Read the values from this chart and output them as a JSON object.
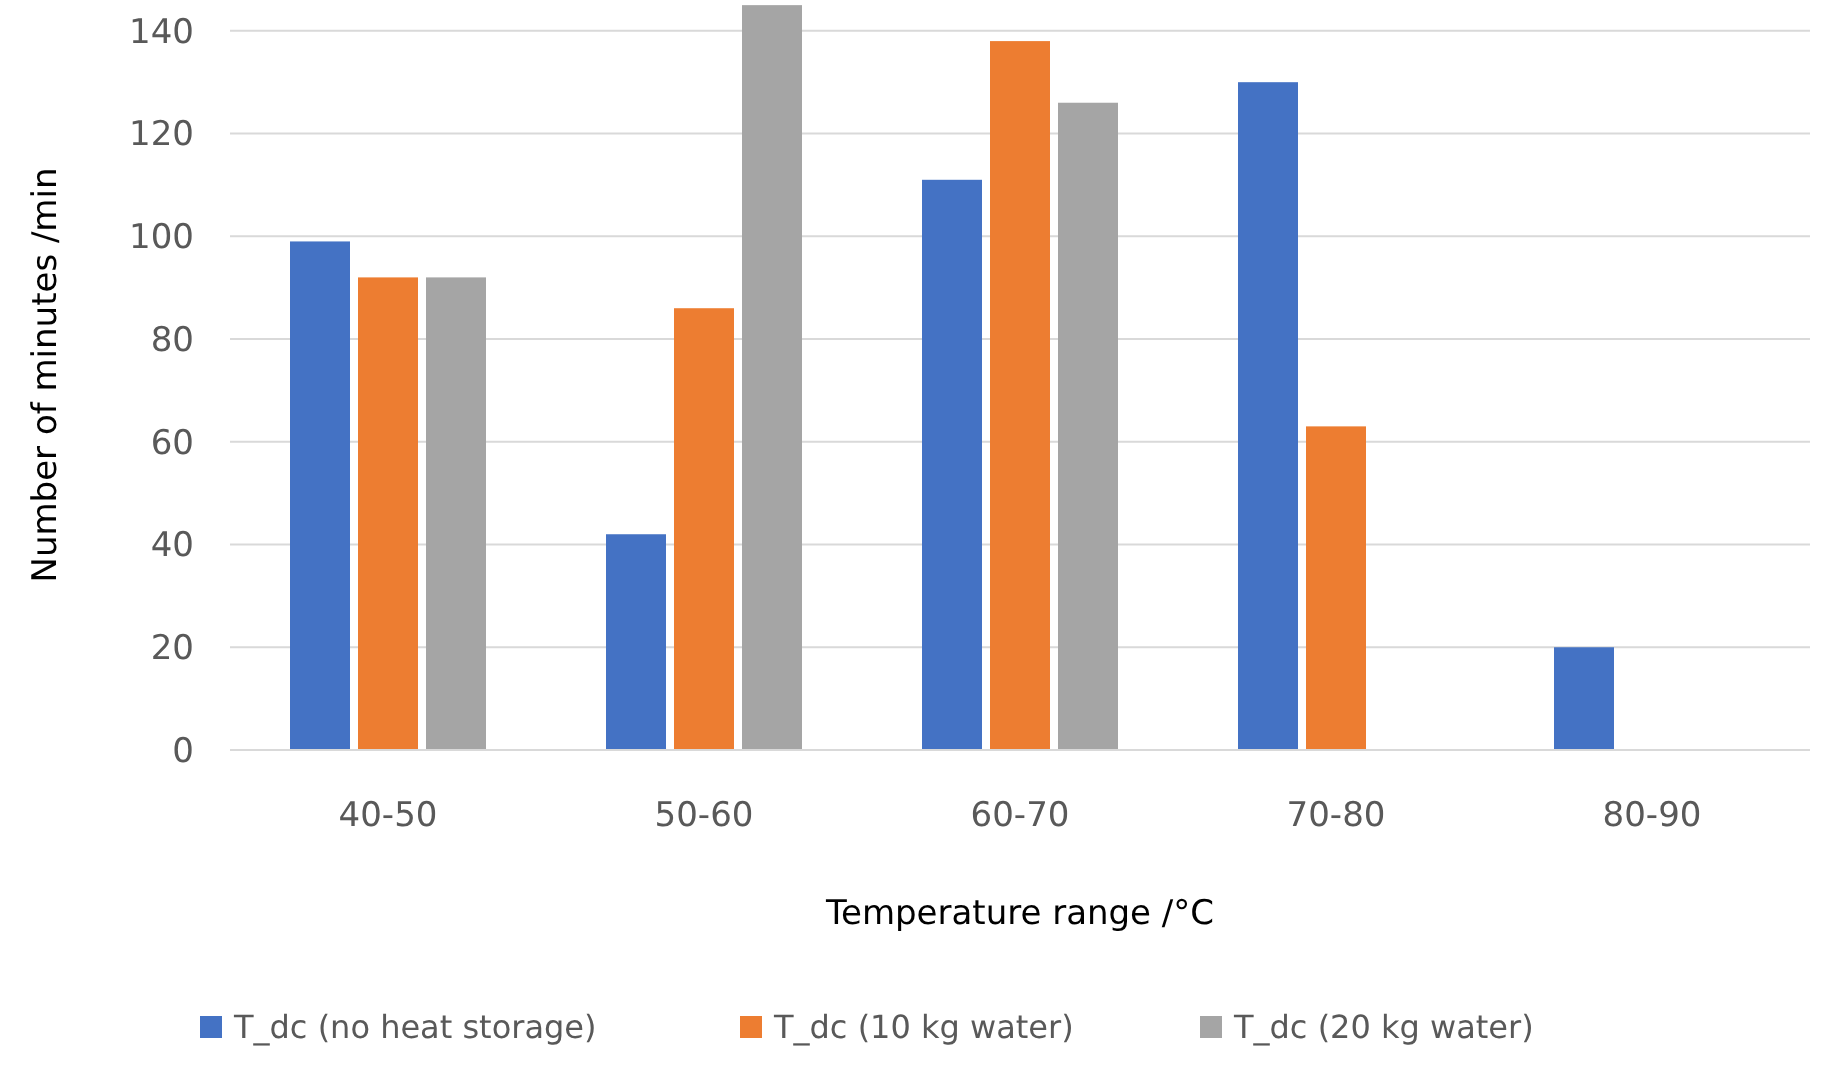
{
  "chart_data": {
    "type": "bar",
    "xlabel": "Temperature range /°C",
    "ylabel": "Number of minutes /min",
    "categories": [
      "40-50",
      "50-60",
      "60-70",
      "70-80",
      "80-90"
    ],
    "series": [
      {
        "name": "T_dc (no heat storage)",
        "color": "#4472c4",
        "values": [
          99,
          42,
          111,
          130,
          20
        ]
      },
      {
        "name": "T_dc (10 kg water)",
        "color": "#ed7d31",
        "values": [
          92,
          86,
          138,
          63,
          null
        ]
      },
      {
        "name": "T_dc (20 kg water)",
        "color": "#a5a5a5",
        "values": [
          92,
          145,
          126,
          null,
          null
        ]
      }
    ],
    "ylim": [
      0,
      146
    ],
    "yticks": [
      0,
      20,
      40,
      60,
      80,
      100,
      120,
      140
    ],
    "grid": "y",
    "legend": "bottom"
  }
}
